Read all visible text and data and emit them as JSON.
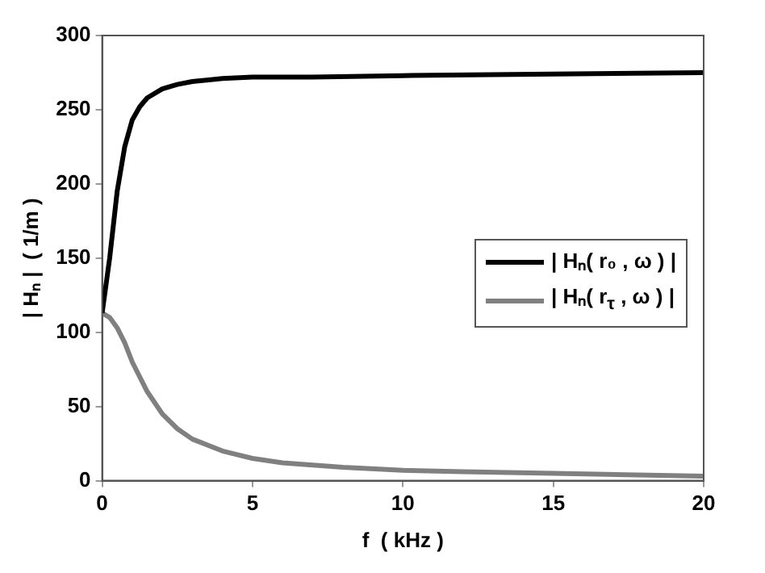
{
  "chart_data": {
    "type": "line",
    "xlabel": "f  ( kHz )",
    "ylabel": "| Hₙ |  ( 1/m )",
    "xlim": [
      0,
      20
    ],
    "xticks": [
      0,
      5,
      10,
      15,
      20
    ],
    "ylim": [
      0,
      300
    ],
    "yticks": [
      0,
      50,
      100,
      150,
      200,
      250,
      300
    ],
    "grid": false,
    "legend": "right",
    "marker": "none",
    "line_style": "solid",
    "series": [
      {
        "name": "| Hₙ( r₀ , ω ) |",
        "color": "#000000",
        "x": [
          0,
          0.25,
          0.5,
          0.75,
          1,
          1.25,
          1.5,
          2,
          2.5,
          3,
          4,
          5,
          7,
          10,
          15,
          20
        ],
        "values": [
          113,
          150,
          195,
          225,
          243,
          252,
          258,
          264,
          267,
          269,
          271,
          272,
          272,
          273,
          274,
          275
        ]
      },
      {
        "name": "| Hₙ( r$_{τ}$ , ω ) |",
        "color": "#808080",
        "x": [
          0,
          0.25,
          0.5,
          0.75,
          1,
          1.5,
          2,
          2.5,
          3,
          4,
          5,
          6,
          8,
          10,
          12,
          15,
          20
        ],
        "values": [
          113,
          110,
          103,
          93,
          80,
          60,
          45,
          35,
          28,
          20,
          15,
          12,
          9,
          7,
          6,
          5,
          3
        ]
      }
    ]
  }
}
